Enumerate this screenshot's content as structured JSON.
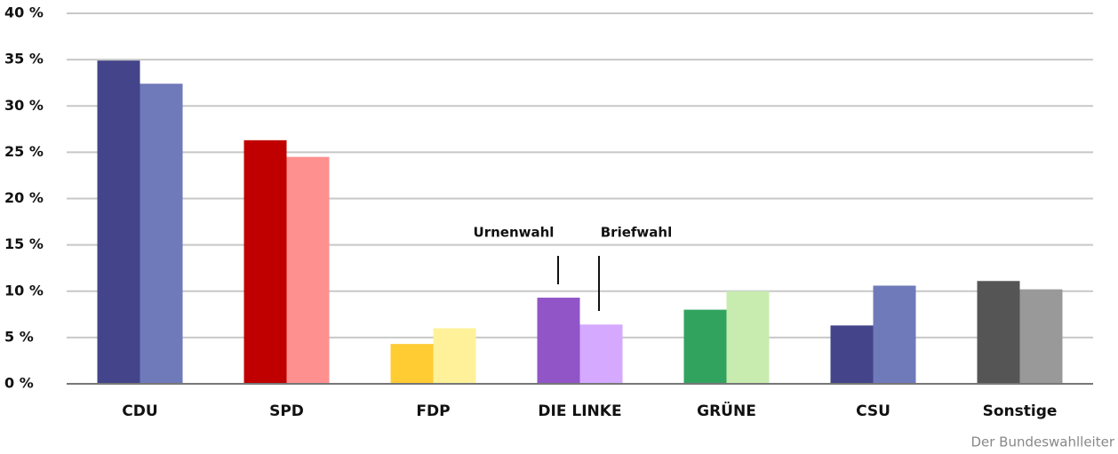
{
  "chart_data": {
    "type": "bar",
    "categories": [
      "CDU",
      "SPD",
      "FDP",
      "DIE LINKE",
      "GRÜNE",
      "CSU",
      "Sonstige"
    ],
    "series": [
      {
        "name": "Urnenwahl",
        "values": [
          34.9,
          26.3,
          4.3,
          9.3,
          8.0,
          6.3,
          11.1
        ],
        "colors": [
          "#43448a",
          "#c00000",
          "#ffcc33",
          "#9155c8",
          "#32a35e",
          "#43448a",
          "#555555"
        ]
      },
      {
        "name": "Briefwahl",
        "values": [
          32.4,
          24.5,
          6.0,
          6.4,
          10.0,
          10.6,
          10.2
        ],
        "colors": [
          "#6f7aba",
          "#ff9090",
          "#fff199",
          "#d4a9ff",
          "#c8ecaf",
          "#6f7aba",
          "#999999"
        ]
      }
    ],
    "ylim": [
      0,
      40
    ],
    "yticks": [
      {
        "value": 0,
        "label": "0 %"
      },
      {
        "value": 5,
        "label": "5 %"
      },
      {
        "value": 10,
        "label": "10 %"
      },
      {
        "value": 15,
        "label": "15 %"
      },
      {
        "value": 20,
        "label": "20 %"
      },
      {
        "value": 25,
        "label": "25 %"
      },
      {
        "value": 30,
        "label": "30 %"
      },
      {
        "value": 35,
        "label": "35 %"
      },
      {
        "value": 40,
        "label": "40 %"
      }
    ],
    "grid": true,
    "source": "Der Bundeswahlleiter"
  }
}
